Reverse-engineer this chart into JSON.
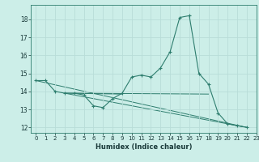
{
  "xlabel": "Humidex (Indice chaleur)",
  "xlim": [
    -0.5,
    23
  ],
  "ylim": [
    11.7,
    18.8
  ],
  "yticks": [
    12,
    13,
    14,
    15,
    16,
    17,
    18
  ],
  "xticks": [
    0,
    1,
    2,
    3,
    4,
    5,
    6,
    7,
    8,
    9,
    10,
    11,
    12,
    13,
    14,
    15,
    16,
    17,
    18,
    19,
    20,
    21,
    22,
    23
  ],
  "bg_color": "#cceee8",
  "line_color": "#2e7d6e",
  "grid_color": "#b8ddd8",
  "series": [
    [
      0,
      14.6
    ],
    [
      1,
      14.6
    ],
    [
      2,
      14.0
    ],
    [
      3,
      13.9
    ],
    [
      4,
      13.9
    ],
    [
      5,
      13.8
    ],
    [
      6,
      13.2
    ],
    [
      7,
      13.1
    ],
    [
      8,
      13.6
    ],
    [
      9,
      13.9
    ],
    [
      10,
      14.8
    ],
    [
      11,
      14.9
    ],
    [
      12,
      14.8
    ],
    [
      13,
      15.3
    ],
    [
      14,
      16.2
    ],
    [
      15,
      18.1
    ],
    [
      16,
      18.2
    ],
    [
      17,
      15.0
    ],
    [
      18,
      14.4
    ],
    [
      19,
      12.8
    ],
    [
      20,
      12.2
    ],
    [
      21,
      12.1
    ],
    [
      22,
      12.0
    ]
  ],
  "extra_lines": [
    [
      [
        0,
        14.6
      ],
      [
        22,
        12.0
      ]
    ],
    [
      [
        3,
        13.9
      ],
      [
        9,
        13.85
      ]
    ],
    [
      [
        3,
        13.9
      ],
      [
        22,
        12.0
      ]
    ],
    [
      [
        4,
        13.9
      ],
      [
        18,
        13.85
      ]
    ]
  ]
}
